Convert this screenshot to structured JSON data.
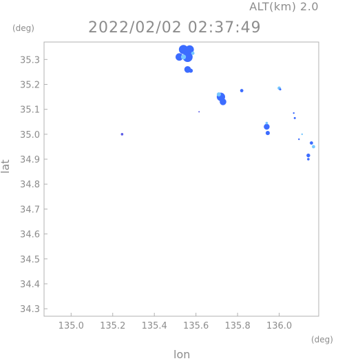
{
  "header": {
    "alt_label": "ALT(km) 2.0",
    "timestamp": "2022/02/02 02:37:49"
  },
  "axes": {
    "y_unit": "(deg)",
    "x_unit": "(deg)",
    "xlabel": "lon",
    "ylabel": "lat"
  },
  "chart_data": {
    "type": "heatmap",
    "title": "",
    "xlabel": "lon",
    "ylabel": "lat",
    "xlim": [
      134.87,
      136.19
    ],
    "ylim": [
      34.27,
      35.37
    ],
    "xticks": [
      135.0,
      135.2,
      135.4,
      135.6,
      135.8,
      136.0
    ],
    "xtick_labels": [
      "135.0",
      "135.2",
      "135.4",
      "135.6",
      "135.8",
      "136.0"
    ],
    "yticks": [
      34.3,
      34.4,
      34.5,
      34.6,
      34.7,
      34.8,
      34.9,
      35.0,
      35.1,
      35.2,
      35.3
    ],
    "ytick_labels": [
      "34.3",
      "34.4",
      "34.5",
      "34.6",
      "34.7",
      "34.8",
      "34.9",
      "35.0",
      "35.1",
      "35.2",
      "35.3"
    ],
    "grid": false,
    "frame_color": "#b0b0b0",
    "colors": {
      "low": "#78c8ff",
      "mid": "#3c6cff",
      "high": "#2a3ce8",
      "speck": "#5a5ae6"
    },
    "echo_cells": [
      {
        "lon": 135.54,
        "lat": 35.34,
        "r": 0.022,
        "level": "mid"
      },
      {
        "lon": 135.57,
        "lat": 35.34,
        "r": 0.02,
        "level": "mid"
      },
      {
        "lon": 135.52,
        "lat": 35.31,
        "r": 0.018,
        "level": "mid"
      },
      {
        "lon": 135.56,
        "lat": 35.31,
        "r": 0.024,
        "level": "mid"
      },
      {
        "lon": 135.54,
        "lat": 35.31,
        "r": 0.012,
        "level": "low"
      },
      {
        "lon": 135.585,
        "lat": 35.325,
        "r": 0.008,
        "level": "low"
      },
      {
        "lon": 135.56,
        "lat": 35.26,
        "r": 0.016,
        "level": "mid"
      },
      {
        "lon": 135.575,
        "lat": 35.255,
        "r": 0.01,
        "level": "mid"
      },
      {
        "lon": 135.72,
        "lat": 35.15,
        "r": 0.02,
        "level": "mid"
      },
      {
        "lon": 135.73,
        "lat": 35.13,
        "r": 0.016,
        "level": "mid"
      },
      {
        "lon": 135.71,
        "lat": 35.16,
        "r": 0.01,
        "level": "low"
      },
      {
        "lon": 135.82,
        "lat": 35.175,
        "r": 0.008,
        "level": "mid"
      },
      {
        "lon": 135.94,
        "lat": 35.03,
        "r": 0.014,
        "level": "mid"
      },
      {
        "lon": 135.945,
        "lat": 35.005,
        "r": 0.01,
        "level": "mid"
      },
      {
        "lon": 135.94,
        "lat": 35.045,
        "r": 0.006,
        "level": "low"
      },
      {
        "lon": 136.0,
        "lat": 35.185,
        "r": 0.008,
        "level": "low"
      },
      {
        "lon": 136.005,
        "lat": 35.18,
        "r": 0.005,
        "level": "mid"
      },
      {
        "lon": 136.07,
        "lat": 35.085,
        "r": 0.004,
        "level": "mid"
      },
      {
        "lon": 136.075,
        "lat": 35.065,
        "r": 0.005,
        "level": "mid"
      },
      {
        "lon": 136.11,
        "lat": 35.0,
        "r": 0.004,
        "level": "low"
      },
      {
        "lon": 136.155,
        "lat": 34.965,
        "r": 0.008,
        "level": "mid"
      },
      {
        "lon": 136.165,
        "lat": 34.95,
        "r": 0.008,
        "level": "low"
      },
      {
        "lon": 136.14,
        "lat": 34.915,
        "r": 0.009,
        "level": "mid"
      },
      {
        "lon": 136.14,
        "lat": 34.9,
        "r": 0.006,
        "level": "mid"
      },
      {
        "lon": 136.095,
        "lat": 34.98,
        "r": 0.004,
        "level": "mid"
      },
      {
        "lon": 135.245,
        "lat": 35.0,
        "r": 0.006,
        "level": "speck"
      },
      {
        "lon": 135.615,
        "lat": 35.09,
        "r": 0.002,
        "level": "speck"
      }
    ]
  }
}
